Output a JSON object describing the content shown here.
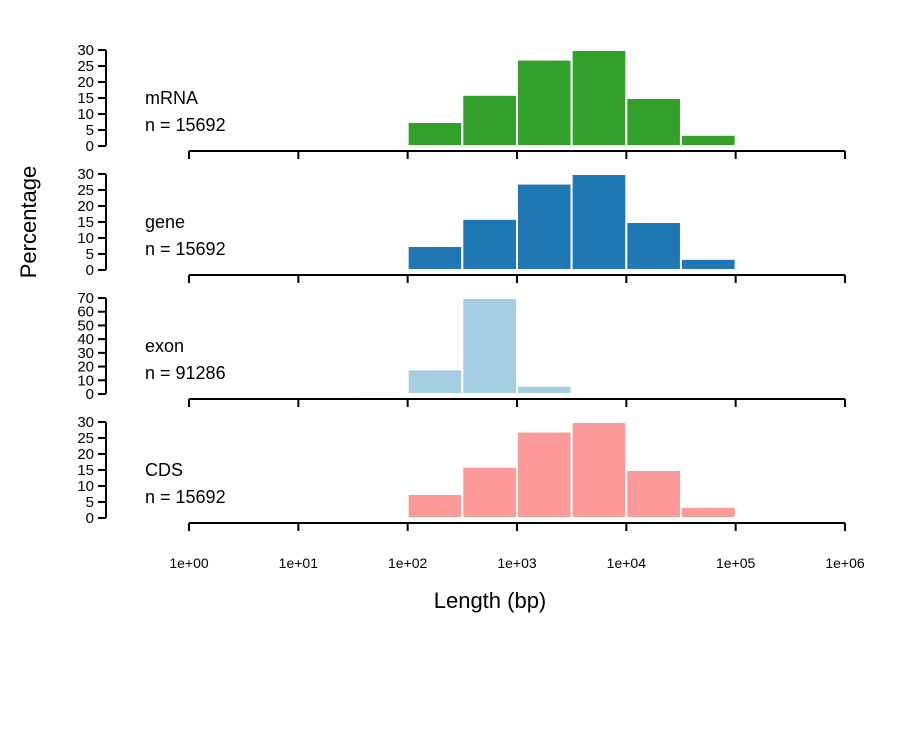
{
  "chart_data": {
    "type": "bar",
    "ylabel": "Percentage",
    "xlabel": "Length (bp)",
    "x_scale": "log10",
    "x_range": [
      1,
      1000000
    ],
    "x_ticks": [
      {
        "value": 1,
        "label": "1e+00"
      },
      {
        "value": 10,
        "label": "1e+01"
      },
      {
        "value": 100,
        "label": "1e+02"
      },
      {
        "value": 1000,
        "label": "1e+03"
      },
      {
        "value": 10000,
        "label": "1e+04"
      },
      {
        "value": 100000,
        "label": "1e+05"
      },
      {
        "value": 1000000,
        "label": "1e+06"
      }
    ],
    "bin_edges": [
      1,
      3.16,
      10,
      31.6,
      100,
      316,
      1000,
      3160,
      10000,
      31600,
      100000,
      316000,
      1000000
    ],
    "panels": [
      {
        "name": "mRNA",
        "n_label": "n =  15692",
        "color": "#33a02c",
        "ylim": [
          0,
          30
        ],
        "y_ticks": [
          0,
          5,
          10,
          15,
          20,
          25,
          30
        ],
        "values": [
          0,
          0,
          0,
          0,
          7.5,
          16,
          27,
          30,
          15,
          3.5,
          0.5,
          0
        ]
      },
      {
        "name": "gene",
        "n_label": "n =  15692",
        "color": "#1f78b4",
        "ylim": [
          0,
          30
        ],
        "y_ticks": [
          0,
          5,
          10,
          15,
          20,
          25,
          30
        ],
        "values": [
          0,
          0,
          0,
          0,
          7.5,
          16,
          27,
          30,
          15,
          3.5,
          0.5,
          0
        ]
      },
      {
        "name": "exon",
        "n_label": "n =  91286",
        "color": "#a6cee3",
        "ylim": [
          0,
          70
        ],
        "y_ticks": [
          0,
          10,
          20,
          30,
          40,
          50,
          60,
          70
        ],
        "values": [
          0,
          0,
          0,
          1.5,
          18,
          70,
          6,
          1,
          0,
          0,
          0,
          0
        ]
      },
      {
        "name": "CDS",
        "n_label": "n =  15692",
        "color": "#fb9a99",
        "ylim": [
          0,
          30
        ],
        "y_ticks": [
          0,
          5,
          10,
          15,
          20,
          25,
          30
        ],
        "values": [
          0,
          0,
          0,
          0,
          7.5,
          16,
          27,
          30,
          15,
          3.5,
          0.5,
          0
        ]
      }
    ]
  }
}
